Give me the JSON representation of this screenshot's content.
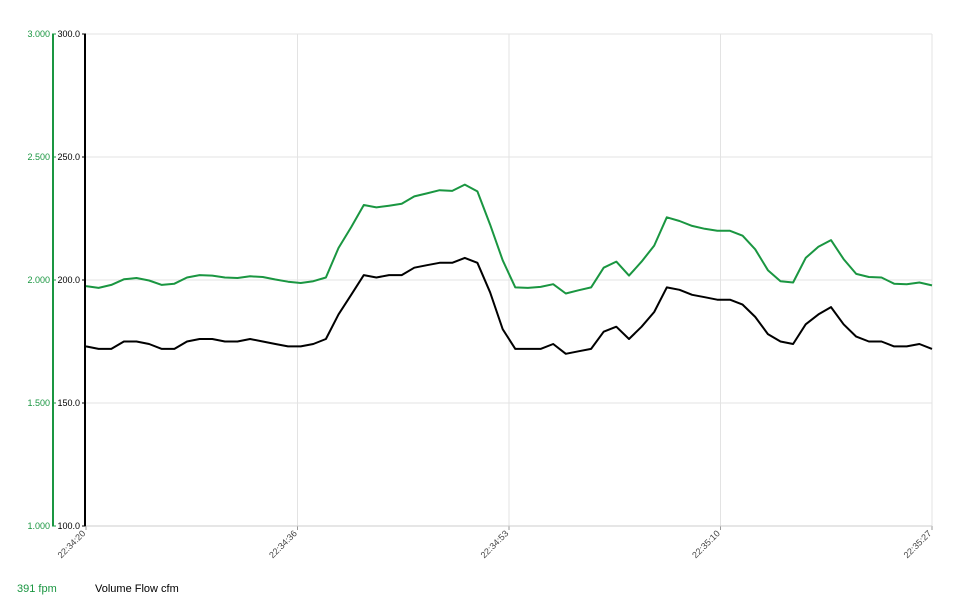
{
  "chart_data": {
    "type": "line",
    "x_ticks": [
      "22:34:20",
      "22:34:36",
      "22:34:53",
      "22:35:10",
      "22:35:27"
    ],
    "y_left": {
      "label": "fpm",
      "ticks": [
        "3.000",
        "2.500",
        "2.000",
        "1.500",
        "1.000"
      ],
      "range": [
        1000,
        3000
      ],
      "color": "#1a9641"
    },
    "y_right": {
      "label": "Volume Flow cfm",
      "ticks": [
        "300.0",
        "250.0",
        "200.0",
        "150.0",
        "100.0"
      ],
      "range": [
        100,
        300
      ],
      "color": "#000000"
    },
    "grid": true,
    "series": [
      {
        "name": "fpm",
        "axis": "left",
        "color": "#1a9641",
        "x": [
          0,
          1,
          2,
          3,
          4,
          5,
          6,
          7,
          8,
          9,
          10,
          11,
          12,
          13,
          14,
          15,
          16,
          17,
          18,
          19,
          20,
          21,
          22,
          23,
          24,
          25,
          26,
          27,
          28,
          29,
          30,
          31,
          32,
          33,
          34,
          35,
          36,
          37,
          38,
          39,
          40,
          41,
          42,
          43,
          44,
          45,
          46,
          47,
          48,
          49,
          50,
          51,
          52,
          53,
          54,
          55,
          56,
          57,
          58,
          59,
          60,
          61,
          62,
          63,
          64,
          65,
          66,
          67
        ],
        "values": [
          1975,
          1968,
          1980,
          2003,
          2008,
          1998,
          1980,
          1985,
          2010,
          2020,
          2018,
          2010,
          2008,
          2015,
          2012,
          2002,
          1993,
          1988,
          1995,
          2010,
          2130,
          2215,
          2305,
          2295,
          2302,
          2310,
          2340,
          2352,
          2365,
          2362,
          2388,
          2360,
          2225,
          2080,
          1970,
          1968,
          1972,
          1983,
          1945,
          1958,
          1970,
          2050,
          2075,
          2018,
          2075,
          2140,
          2255,
          2240,
          2220,
          2208,
          2200,
          2200,
          2180,
          2125,
          2040,
          1995,
          1990,
          2090,
          2135,
          2162,
          2085,
          2025,
          2012,
          2010,
          1985,
          1983,
          1990,
          1978
        ]
      },
      {
        "name": "Volume Flow cfm",
        "axis": "right",
        "color": "#000000",
        "x": [
          0,
          1,
          2,
          3,
          4,
          5,
          6,
          7,
          8,
          9,
          10,
          11,
          12,
          13,
          14,
          15,
          16,
          17,
          18,
          19,
          20,
          21,
          22,
          23,
          24,
          25,
          26,
          27,
          28,
          29,
          30,
          31,
          32,
          33,
          34,
          35,
          36,
          37,
          38,
          39,
          40,
          41,
          42,
          43,
          44,
          45,
          46,
          47,
          48,
          49,
          50,
          51,
          52,
          53,
          54,
          55,
          56,
          57,
          58,
          59,
          60,
          61,
          62,
          63,
          64,
          65,
          66,
          67
        ],
        "values": [
          173,
          172,
          172,
          175,
          175,
          174,
          172,
          172,
          175,
          176,
          176,
          175,
          175,
          176,
          175,
          174,
          173,
          173,
          174,
          176,
          186,
          194,
          202,
          201,
          202,
          202,
          205,
          206,
          207,
          207,
          209,
          207,
          195,
          180,
          172,
          172,
          172,
          174,
          170,
          171,
          172,
          179,
          181,
          176,
          181,
          187,
          197,
          196,
          194,
          193,
          192,
          192,
          190,
          185,
          178,
          175,
          174,
          182,
          186,
          189,
          182,
          177,
          175,
          175,
          173,
          173,
          174,
          172
        ]
      }
    ],
    "x_range": [
      0,
      67
    ]
  },
  "legend": {
    "left_value": "391",
    "left_unit": "fpm",
    "right_label": "Volume Flow cfm"
  }
}
